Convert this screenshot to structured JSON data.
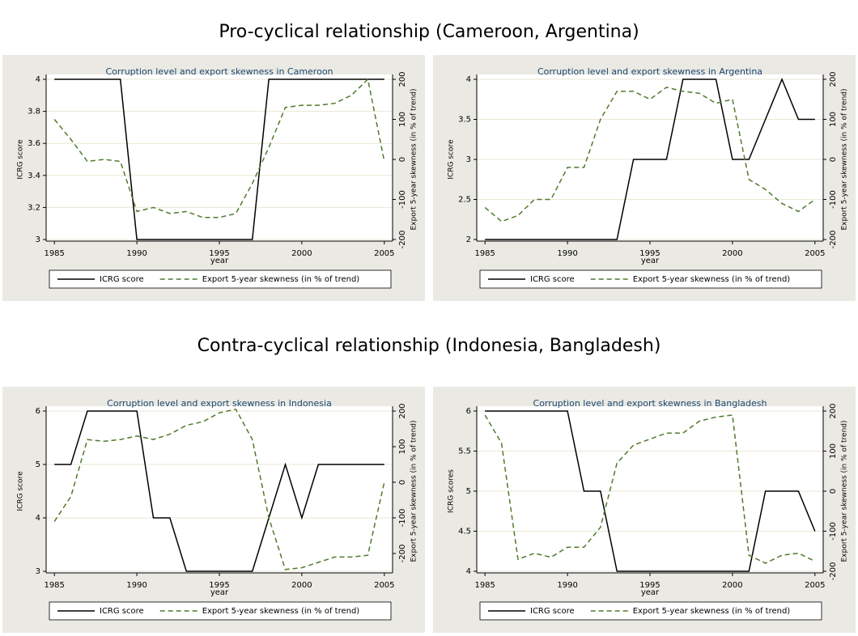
{
  "headings": [
    "Pro-cyclical relationship (Cameroon, Argentina)",
    "Contra-cyclical relationship (Indonesia, Bangladesh)"
  ],
  "chart_data": [
    {
      "type": "line",
      "title": "Corruption level and export skewness in Cameroon",
      "x": [
        1985,
        1986,
        1987,
        1988,
        1989,
        1990,
        1991,
        1992,
        1993,
        1994,
        1995,
        1996,
        1997,
        1998,
        1999,
        2000,
        2001,
        2002,
        2003,
        2004,
        2005
      ],
      "xlim": [
        1984.5,
        2005.5
      ],
      "xticks": [
        1985,
        1990,
        1995,
        2000,
        2005
      ],
      "xlabel": "year",
      "ylabel": "ICRG score",
      "ylim": [
        3,
        4
      ],
      "yticks": [
        3,
        3.2,
        3.4,
        3.6,
        3.8,
        4
      ],
      "y2label": "Export 5-year skewness (in % of trend)",
      "y2lim": [
        -200,
        200
      ],
      "y2ticks": [
        -200,
        -100,
        0,
        100,
        200
      ],
      "grid": true,
      "series": [
        {
          "name": "ICRG score",
          "color": "#000000",
          "values": [
            4,
            4,
            4,
            4,
            4,
            3,
            3,
            3,
            3,
            3,
            3,
            3,
            3,
            4,
            4,
            4,
            4,
            4,
            4,
            4,
            4
          ]
        },
        {
          "name": "Export 5-year skewness (in % of trend)",
          "color": "#4f7a2c",
          "axis": "y2",
          "values": [
            100,
            50,
            -5,
            0,
            -5,
            -130,
            -120,
            -135,
            -130,
            -145,
            -145,
            -135,
            -60,
            30,
            130,
            135,
            135,
            140,
            160,
            200,
            -5
          ]
        }
      ]
    },
    {
      "type": "line",
      "title": "Corruption level and export skewness in Argentina",
      "x": [
        1985,
        1986,
        1987,
        1988,
        1989,
        1990,
        1991,
        1992,
        1993,
        1994,
        1995,
        1996,
        1997,
        1998,
        1999,
        2000,
        2001,
        2002,
        2003,
        2004,
        2005
      ],
      "xlim": [
        1984.5,
        2005.5
      ],
      "xticks": [
        1985,
        1990,
        1995,
        2000,
        2005
      ],
      "xlabel": "year",
      "ylabel": "ICRG score",
      "ylim": [
        2,
        4
      ],
      "yticks": [
        2,
        2.5,
        3,
        3.5,
        4
      ],
      "y2label": "Export 5-year skewness (in % of trend)",
      "y2lim": [
        -200,
        200
      ],
      "y2ticks": [
        -200,
        -100,
        0,
        100,
        200
      ],
      "grid": true,
      "series": [
        {
          "name": "ICRG score",
          "color": "#000000",
          "values": [
            2,
            2,
            2,
            2,
            2,
            2,
            2,
            2,
            2,
            3,
            3,
            3,
            4,
            4,
            4,
            3,
            3,
            3.5,
            4,
            3.5,
            3.5
          ]
        },
        {
          "name": "Export 5-year skewness (in % of trend)",
          "color": "#4f7a2c",
          "axis": "y2",
          "values": [
            -120,
            -155,
            -140,
            -100,
            -100,
            -20,
            -20,
            100,
            170,
            170,
            150,
            180,
            170,
            165,
            140,
            150,
            -50,
            -75,
            -110,
            -130,
            -100
          ]
        }
      ]
    },
    {
      "type": "line",
      "title": "Corruption level and export skewness in Indonesia",
      "x": [
        1985,
        1986,
        1987,
        1988,
        1989,
        1990,
        1991,
        1992,
        1993,
        1994,
        1995,
        1996,
        1997,
        1998,
        1999,
        2000,
        2001,
        2002,
        2003,
        2004,
        2005
      ],
      "xlim": [
        1984.5,
        2005.5
      ],
      "xticks": [
        1985,
        1990,
        1995,
        2000,
        2005
      ],
      "xlabel": "year",
      "ylabel": "ICRG score",
      "ylim": [
        3,
        6
      ],
      "yticks": [
        3,
        4,
        5,
        6
      ],
      "y2label": "Export 5-year skewness (in % of trend)",
      "y2lim": [
        -250,
        200
      ],
      "y2ticks": [
        -200,
        -100,
        0,
        100,
        200
      ],
      "grid": true,
      "series": [
        {
          "name": "ICRG score",
          "color": "#000000",
          "values": [
            5,
            5,
            6,
            6,
            6,
            6,
            4,
            4,
            3,
            3,
            3,
            3,
            3,
            4,
            5,
            4,
            5,
            5,
            5,
            5,
            5
          ]
        },
        {
          "name": "Export 5-year skewness (in % of trend)",
          "color": "#4f7a2c",
          "axis": "y2",
          "values": [
            -110,
            -40,
            120,
            115,
            120,
            130,
            120,
            135,
            160,
            170,
            195,
            205,
            120,
            -100,
            -245,
            -240,
            -225,
            -210,
            -210,
            -205,
            0
          ]
        }
      ]
    },
    {
      "type": "line",
      "title": "Corruption level and export skewness in Bangladesh",
      "x": [
        1985,
        1986,
        1987,
        1988,
        1989,
        1990,
        1991,
        1992,
        1993,
        1994,
        1995,
        1996,
        1997,
        1998,
        1999,
        2000,
        2001,
        2002,
        2003,
        2004,
        2005
      ],
      "xlim": [
        1984.5,
        2005.5
      ],
      "xticks": [
        1985,
        1990,
        1995,
        2000,
        2005
      ],
      "xlabel": "year",
      "ylabel": "ICRG scores",
      "ylim": [
        4,
        6
      ],
      "yticks": [
        4,
        4.5,
        5,
        5.5,
        6
      ],
      "y2label": "Export 5-year skewness (in % of trend)",
      "y2lim": [
        -200,
        200
      ],
      "y2ticks": [
        -200,
        -100,
        0,
        100,
        200
      ],
      "grid": true,
      "series": [
        {
          "name": "ICRG score",
          "color": "#000000",
          "values": [
            6,
            6,
            6,
            6,
            6,
            6,
            5,
            5,
            4,
            4,
            4,
            4,
            4,
            4,
            4,
            4,
            4,
            5,
            5,
            5,
            4.5
          ]
        },
        {
          "name": "Export 5-year skewness (in % of trend)",
          "color": "#4f7a2c",
          "axis": "y2",
          "values": [
            190,
            120,
            -170,
            -155,
            -165,
            -140,
            -140,
            -90,
            70,
            115,
            130,
            145,
            145,
            175,
            185,
            190,
            -160,
            -180,
            -160,
            -155,
            -175
          ]
        }
      ]
    }
  ]
}
